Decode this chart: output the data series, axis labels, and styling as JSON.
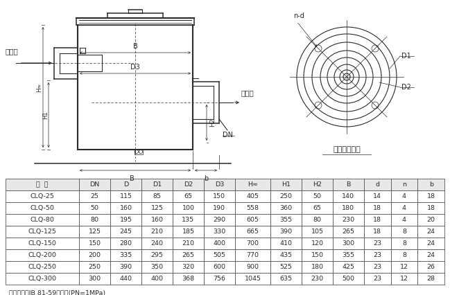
{
  "table_headers": [
    "型  号",
    "DN",
    "D",
    "D1",
    "D2",
    "D3",
    "H≈",
    "H1",
    "H2",
    "B",
    "d",
    "n",
    "b"
  ],
  "table_data": [
    [
      "CLQ-25",
      "25",
      "115",
      "85",
      "65",
      "150",
      "405",
      "250",
      "50",
      "140",
      "14",
      "4",
      "18"
    ],
    [
      "CLQ-50",
      "50",
      "160",
      "125",
      "100",
      "190",
      "558",
      "360",
      "65",
      "180",
      "18",
      "4",
      "18"
    ],
    [
      "CLQ-80",
      "80",
      "195",
      "160",
      "135",
      "290",
      "605",
      "355",
      "80",
      "230",
      "18",
      "4",
      "20"
    ],
    [
      "CLQ-125",
      "125",
      "245",
      "210",
      "185",
      "330",
      "665",
      "390",
      "105",
      "265",
      "18",
      "8",
      "24"
    ],
    [
      "CLQ-150",
      "150",
      "280",
      "240",
      "210",
      "400",
      "700",
      "410",
      "120",
      "300",
      "23",
      "8",
      "24"
    ],
    [
      "CLQ-200",
      "200",
      "335",
      "295",
      "265",
      "505",
      "770",
      "435",
      "150",
      "355",
      "23",
      "8",
      "24"
    ],
    [
      "CLQ-250",
      "250",
      "390",
      "350",
      "320",
      "600",
      "900",
      "525",
      "180",
      "425",
      "23",
      "12",
      "26"
    ],
    [
      "CLQ-300",
      "300",
      "440",
      "400",
      "368",
      "756",
      "1045",
      "635",
      "230",
      "500",
      "23",
      "12",
      "28"
    ]
  ],
  "footnote": "连接法兰按JB 81-59的规定(PN=1MPa)",
  "label_inlet": "进油口",
  "label_outlet": "出油口",
  "label_flange": "进出油口法兰",
  "label_nd": "n-d",
  "label_D1": "D1",
  "label_D2": "D2",
  "label_DN": "DN",
  "label_B": "B",
  "label_b": "b",
  "label_H": "H≈",
  "label_H1": "H1",
  "label_H2": "H2",
  "label_D3": "D3",
  "bg_color": "#ffffff",
  "line_color": "#2a2a2a",
  "table_header_bg": "#e8e8e8",
  "table_border_color": "#555555",
  "col_weights": [
    1.7,
    0.72,
    0.72,
    0.72,
    0.72,
    0.72,
    0.82,
    0.72,
    0.72,
    0.72,
    0.62,
    0.62,
    0.62
  ]
}
